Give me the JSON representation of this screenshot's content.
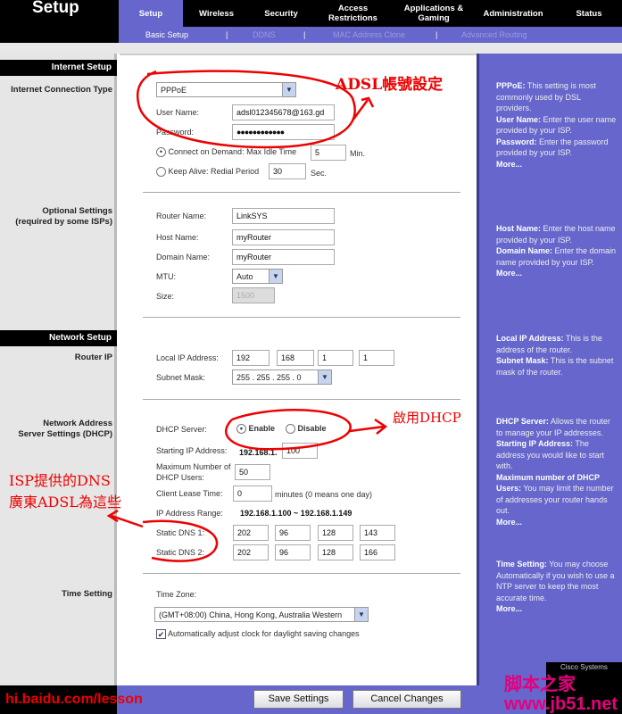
{
  "header": {
    "title": "Setup",
    "tabs": [
      "Setup",
      "Wireless",
      "Security",
      "Access Restrictions",
      "Applications & Gaming",
      "Administration",
      "Status"
    ],
    "subtabs": [
      "Basic Setup",
      "DDNS",
      "MAC Address Clone",
      "Advanced Routing"
    ],
    "separator": "|"
  },
  "sections": {
    "internet_setup": "Internet Setup",
    "internet_connection_type": "Internet Connection Type",
    "optional_settings": "Optional Settings",
    "optional_note": "(required by some ISPs)",
    "network_setup": "Network Setup",
    "router_ip": "Router IP",
    "dhcp_1": "Network Address",
    "dhcp_2": "Server Settings (DHCP)",
    "time_setting": "Time Setting"
  },
  "internet": {
    "connection_type": "PPPoE",
    "user_name_label": "User Name:",
    "user_name": "adsl012345678@163.gd",
    "password_label": "Password:",
    "password": "●●●●●●●●●●●●",
    "connect_on_demand": "Connect on Demand: Max Idle Time",
    "idle_time": "5",
    "min": "Min.",
    "keep_alive": "Keep Alive: Redial Period",
    "redial": "30",
    "sec": "Sec."
  },
  "optional": {
    "router_name_label": "Router Name:",
    "router_name": "LinkSYS",
    "host_name_label": "Host Name:",
    "host_name": "myRouter",
    "domain_name_label": "Domain Name:",
    "domain_name": "myRouter",
    "mtu_label": "MTU:",
    "mtu": "Auto",
    "size_label": "Size:",
    "size": "1500"
  },
  "network": {
    "local_ip_label": "Local IP Address:",
    "local_ip": [
      "192",
      "168",
      "1",
      "1"
    ],
    "subnet_label": "Subnet Mask:",
    "subnet": "255 . 255 . 255 . 0"
  },
  "dhcp": {
    "server_label": "DHCP Server:",
    "enable": "Enable",
    "disable": "Disable",
    "start_label": "Starting IP Address:",
    "start_prefix": "192.168.1.",
    "start": "100",
    "max_label_1": "Maximum Number of",
    "max_label_2": "DHCP Users:",
    "max": "50",
    "lease_label": "Client Lease Time:",
    "lease": "0",
    "lease_note": "minutes (0 means one day)",
    "range_label": "IP Address Range:",
    "range": "192.168.1.100 ~ 192.168.1.149",
    "dns1_label": "Static DNS 1:",
    "dns1": [
      "202",
      "96",
      "128",
      "143"
    ],
    "dns2_label": "Static DNS 2:",
    "dns2": [
      "202",
      "96",
      "128",
      "166"
    ]
  },
  "time": {
    "zone_label": "Time Zone:",
    "zone": "(GMT+08:00) China, Hong Kong, Australia Western",
    "dst": "Automatically adjust clock for daylight saving changes"
  },
  "help": [
    {
      "b1": "PPPoE:",
      "t1": " This setting is most commonly used by DSL providers.",
      "b2": "User Name:",
      "t2": " Enter the user name provided by your ISP.",
      "b3": "Password:",
      "t3": " Enter the password provided by your ISP.",
      "more": "More..."
    },
    {
      "b1": "Host Name:",
      "t1": " Enter the host name provided by your ISP.",
      "b2": "Domain Name:",
      "t2": " Enter the domain name provided by your ISP.",
      "more": "More..."
    },
    {
      "b1": "Local IP Address:",
      "t1": " This is the address of the router.",
      "b2": "Subnet Mask:",
      "t2": " This is the subnet mask of the router."
    },
    {
      "b1": "DHCP Server:",
      "t1": " Allows the router to manage your IP addresses.",
      "b2": "Starting IP Address:",
      "t2": " The address you would like to start with.",
      "b3": "Maximum number of DHCP Users:",
      "t3": " You may limit the number of addresses your router hands out.",
      "more": "More..."
    },
    {
      "b1": "Time Setting:",
      "t1": " You may choose Automatically if you wish to use a NTP server to keep the most accurate time.",
      "more": "More..."
    }
  ],
  "footer": {
    "save": "Save Settings",
    "cancel": "Cancel Changes",
    "watermark_left": "hi.baidu.com/lesson",
    "watermark_right": "脚本之家 www.jb51.net",
    "logo": "Cisco Systems"
  },
  "annotations": {
    "adsl": "ADSL帳號設定",
    "dhcp": "啟用DHCP",
    "dns_1": "ISP提供的DNS",
    "dns_2": "廣東ADSL為這些"
  },
  "colors": {
    "accent": "#6666cc",
    "annotation": "#ee0000"
  }
}
